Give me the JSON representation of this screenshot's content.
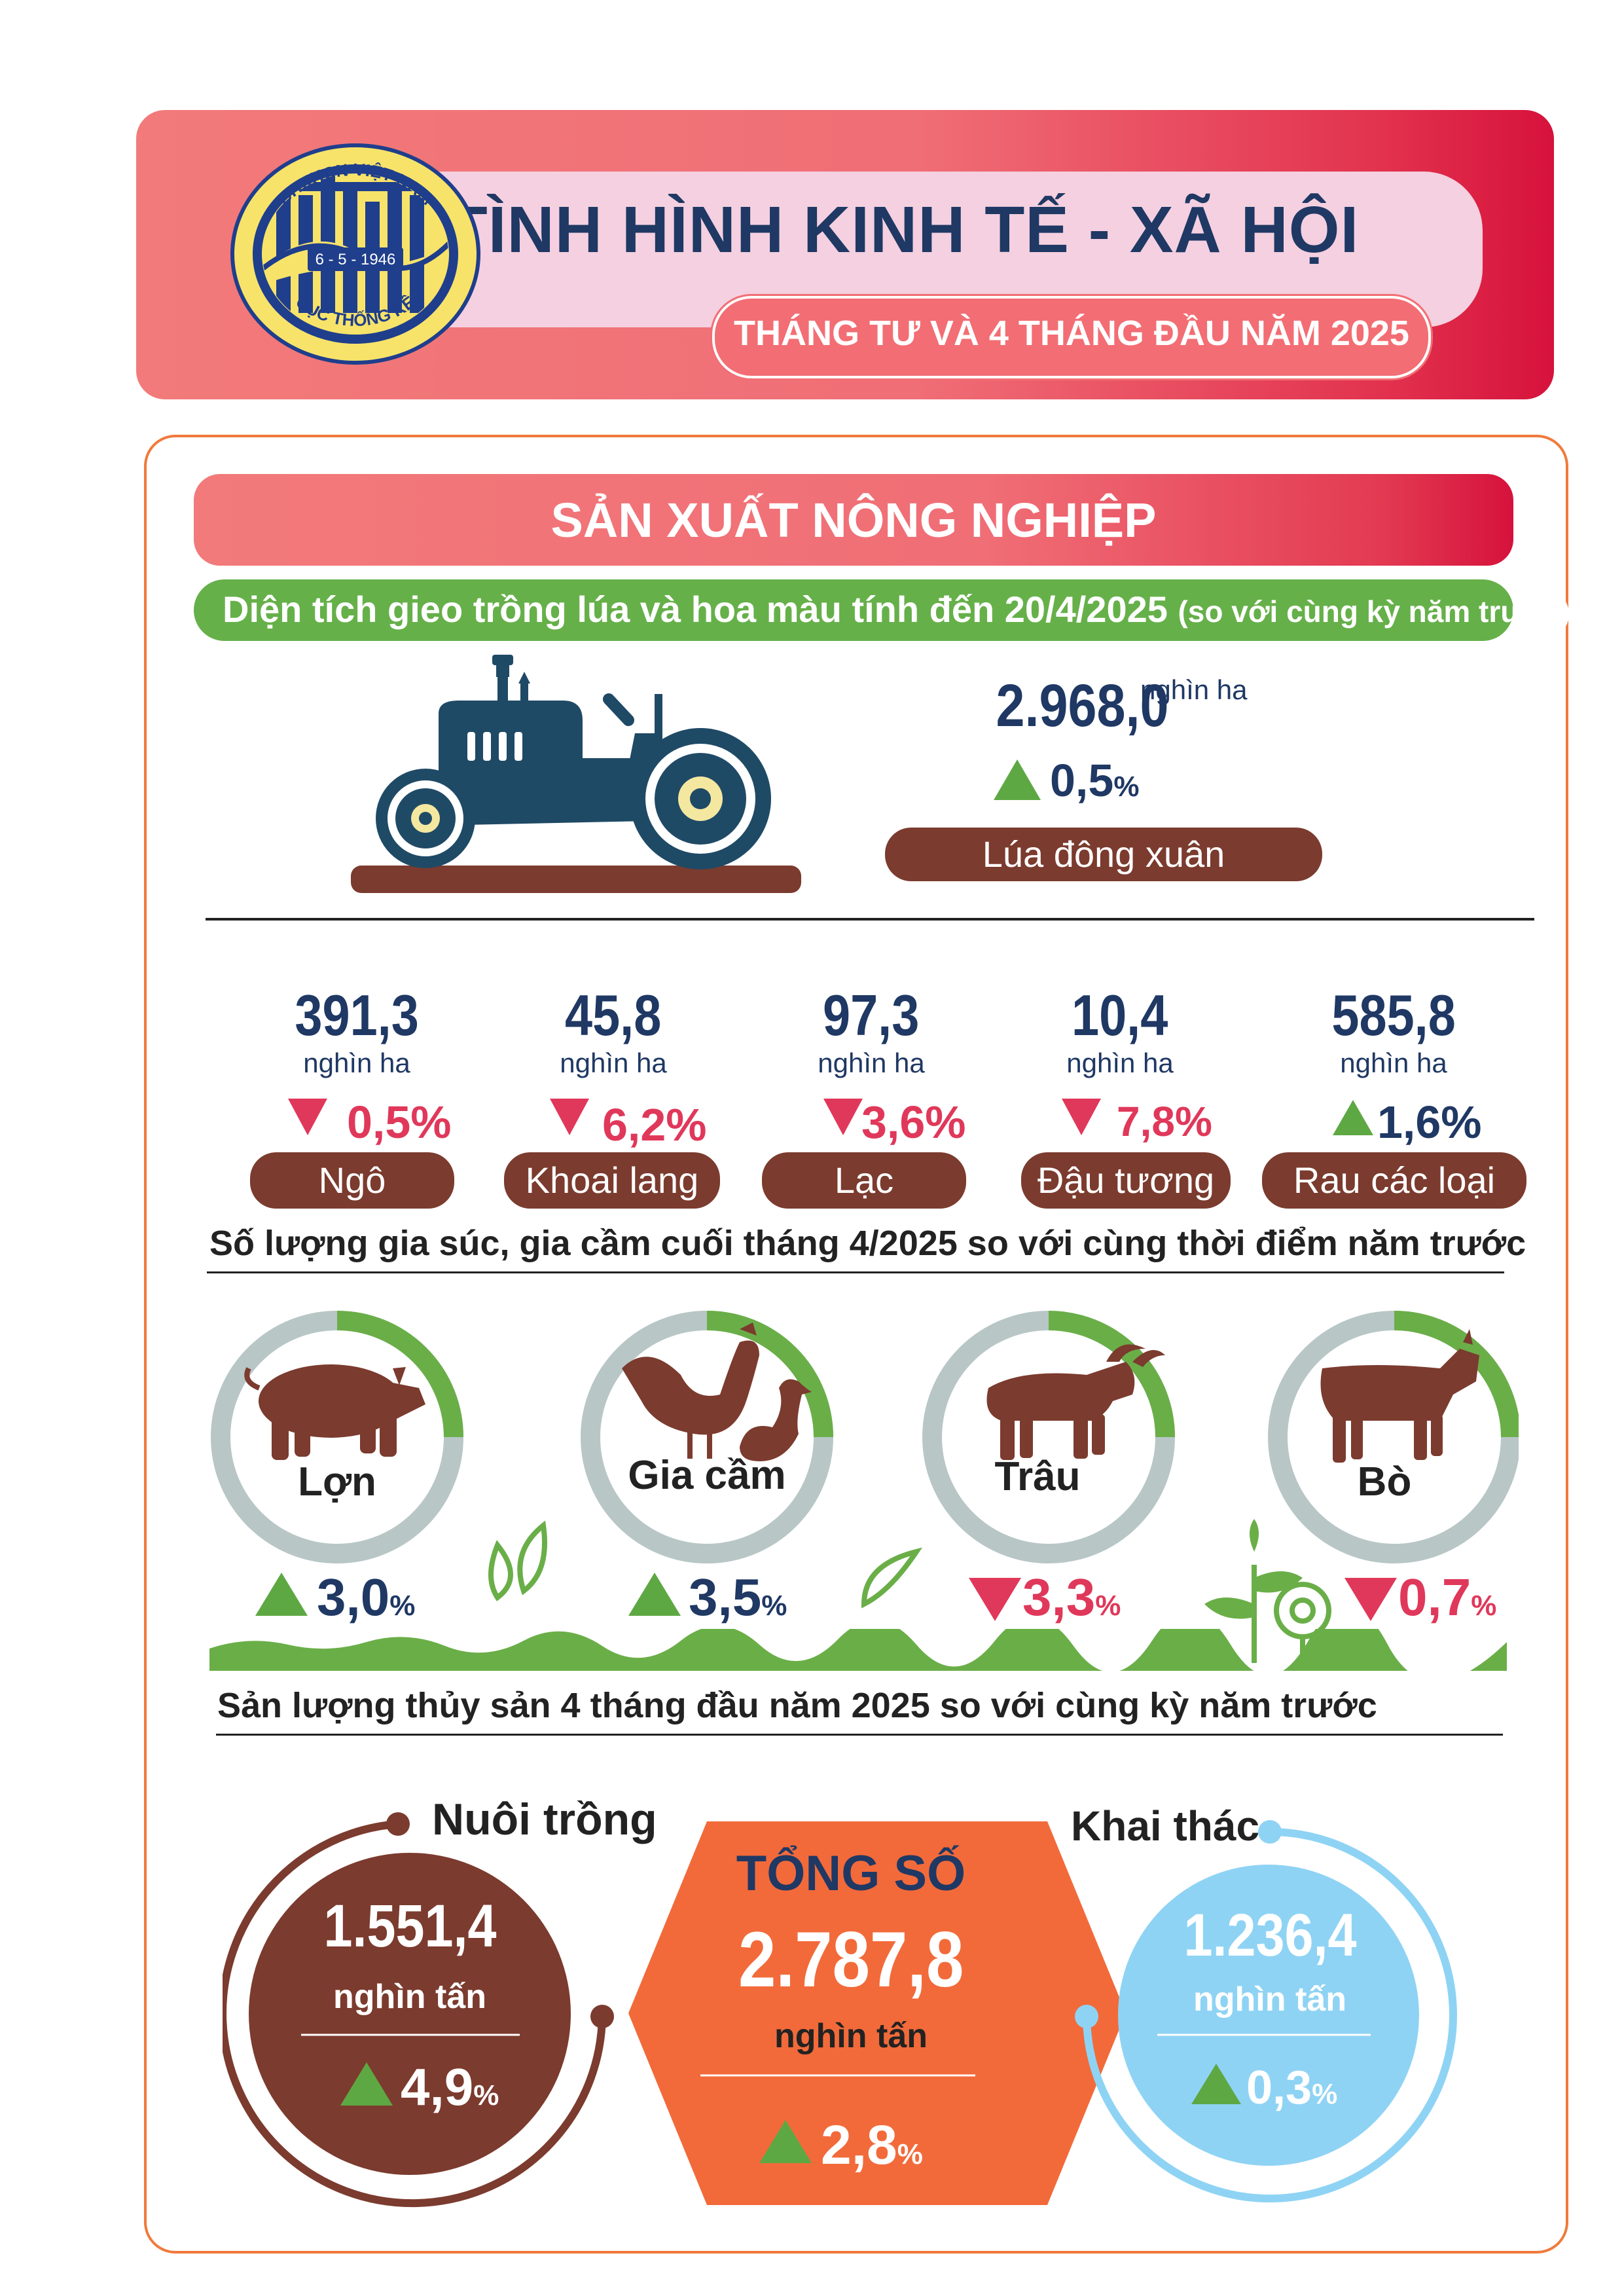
{
  "header": {
    "title": "TÌNH HÌNH KINH TẾ - XÃ HỘI",
    "subtitle": "THÁNG TƯ VÀ 4 THÁNG ĐẦU NĂM 2025",
    "logo_text_top": "CHXHCN VIỆT NAM",
    "logo_date": "6 - 5 - 1946",
    "logo_text_bottom": "CỤC THỐNG KÊ"
  },
  "section": {
    "title": "SẢN XUẤT NÔNG NGHIỆP"
  },
  "planting": {
    "heading": "Diện tích gieo trồng lúa và hoa màu tính đến 20/4/2025",
    "heading_note": "(so với cùng kỳ năm trước)",
    "rice": {
      "value": "2.968,0",
      "unit": "nghìn ha",
      "change": "0,5",
      "pct": "%",
      "direction": "up",
      "label": "Lúa đông xuân"
    },
    "crops": [
      {
        "value": "391,3",
        "unit": "nghìn ha",
        "change": "0,5%",
        "direction": "down",
        "label": "Ngô"
      },
      {
        "value": "45,8",
        "unit": "nghìn ha",
        "change": "6,2%",
        "direction": "down",
        "label": "Khoai lang"
      },
      {
        "value": "97,3",
        "unit": "nghìn ha",
        "change": "3,6%",
        "direction": "down",
        "label": "Lạc"
      },
      {
        "value": "10,4",
        "unit": "nghìn ha",
        "change": "7,8%",
        "direction": "down",
        "label": "Đậu tương"
      },
      {
        "value": "585,8",
        "unit": "nghìn ha",
        "change": "1,6%",
        "direction": "up",
        "label": "Rau các loại"
      }
    ]
  },
  "livestock": {
    "heading": "Số lượng gia súc, gia cầm cuối tháng 4/2025 so với cùng thời điểm năm trước",
    "items": [
      {
        "label": "Lợn",
        "change": "3,0",
        "pct": "%",
        "direction": "up"
      },
      {
        "label": "Gia cầm",
        "change": "3,5",
        "pct": "%",
        "direction": "up"
      },
      {
        "label": "Trâu",
        "change": "3,3",
        "pct": "%",
        "direction": "down"
      },
      {
        "label": "Bò",
        "change": "0,7",
        "pct": "%",
        "direction": "down"
      }
    ]
  },
  "fishery": {
    "heading": "Sản lượng thủy sản 4 tháng đầu năm 2025 so với cùng kỳ năm trước",
    "farming": {
      "label": "Nuôi trồng",
      "value": "1.551,4",
      "unit": "nghìn tấn",
      "change": "4,9",
      "pct": "%",
      "direction": "up"
    },
    "total": {
      "label": "TỔNG SỐ",
      "value": "2.787,8",
      "unit": "nghìn tấn",
      "change": "2,8",
      "pct": "%",
      "direction": "up"
    },
    "catching": {
      "label": "Khai thác",
      "value": "1.236,4",
      "unit": "nghìn tấn",
      "change": "0,3",
      "pct": "%",
      "direction": "up"
    }
  },
  "colors": {
    "navy": "#1f3864",
    "up_green": "#5ea843",
    "down_red": "#e0385a",
    "brown": "#7b3b2e",
    "orange": "#f26a3a",
    "sky": "#8fd3f4"
  }
}
